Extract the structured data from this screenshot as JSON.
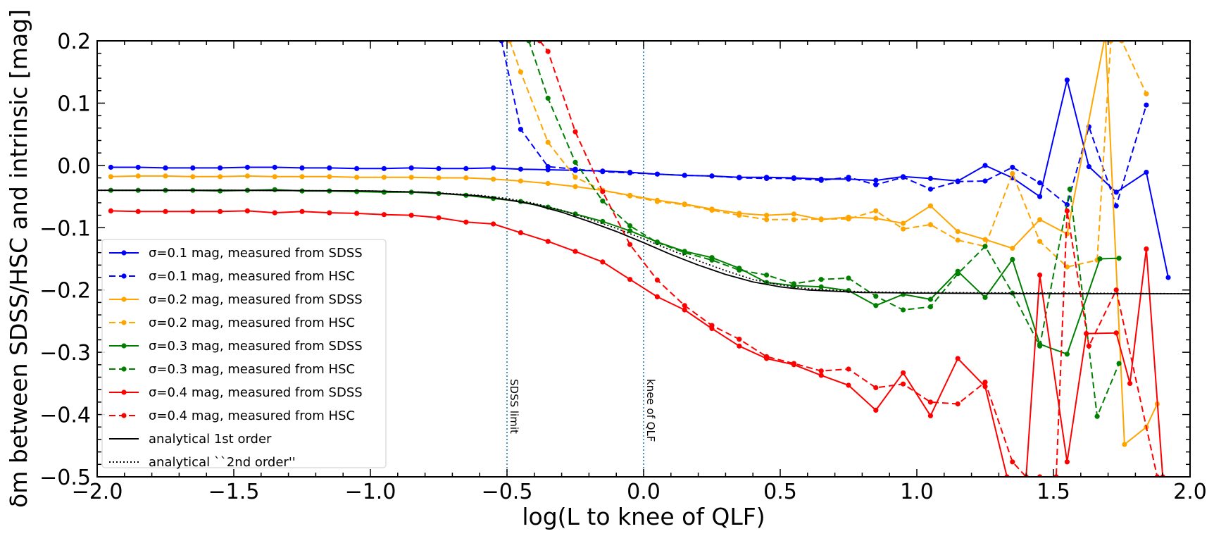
{
  "chart_data": {
    "type": "line",
    "xlabel": "log(L to knee of QLF)",
    "ylabel": "δm between SDSS/HSC and intrinsic [mag]",
    "xlim": [
      -2.0,
      2.0
    ],
    "ylim": [
      -0.5,
      0.2
    ],
    "xticks": [
      -2.0,
      -1.5,
      -1.0,
      -0.5,
      0.0,
      0.5,
      1.0,
      1.5,
      2.0
    ],
    "xtick_labels": [
      "−2.0",
      "−1.5",
      "−1.0",
      "−0.5",
      "0.0",
      "0.5",
      "1.0",
      "1.5",
      "2.0"
    ],
    "yticks": [
      0.2,
      0.1,
      0.0,
      -0.1,
      -0.2,
      -0.3,
      -0.4,
      -0.5
    ],
    "ytick_labels": [
      "0.2",
      "0.1",
      "0.0",
      "−0.1",
      "−0.2",
      "−0.3",
      "−0.4",
      "−0.5"
    ],
    "grid": false,
    "legend_position": "lower-left",
    "vertical_lines": [
      {
        "x": -0.5,
        "label": "SDSS limit",
        "color": "#1f77b4"
      },
      {
        "x": 0.0,
        "label": "knee of QLF",
        "color": "#1f77b4"
      }
    ],
    "series": [
      {
        "name": "σ=0.1 mag, measured from SDSS",
        "color": "#0000ff",
        "style": "solid",
        "marker": true,
        "x": [
          -1.95,
          -1.85,
          -1.75,
          -1.65,
          -1.55,
          -1.45,
          -1.35,
          -1.25,
          -1.15,
          -1.05,
          -0.95,
          -0.85,
          -0.75,
          -0.65,
          -0.55,
          -0.45,
          -0.35,
          -0.25,
          -0.15,
          -0.05,
          0.05,
          0.15,
          0.25,
          0.35,
          0.45,
          0.55,
          0.65,
          0.75,
          0.85,
          0.95,
          1.05,
          1.15,
          1.25,
          1.35,
          1.45,
          1.55,
          1.63,
          1.73,
          1.84,
          1.92
        ],
        "y": [
          -0.003,
          -0.003,
          -0.004,
          -0.004,
          -0.004,
          -0.003,
          -0.003,
          -0.004,
          -0.004,
          -0.005,
          -0.005,
          -0.004,
          -0.005,
          -0.005,
          -0.004,
          -0.006,
          -0.007,
          -0.008,
          -0.009,
          -0.011,
          -0.014,
          -0.016,
          -0.017,
          -0.019,
          -0.019,
          -0.02,
          -0.022,
          -0.022,
          -0.024,
          -0.018,
          -0.021,
          -0.025,
          0.0,
          -0.02,
          -0.05,
          0.137,
          -0.002,
          -0.043,
          -0.011,
          -0.18
        ]
      },
      {
        "name": "σ=0.1 mag, measured from HSC",
        "color": "#0000ff",
        "style": "dashed",
        "marker": true,
        "x": [
          -0.52,
          -0.45,
          -0.35,
          -0.25,
          -0.15,
          -0.05,
          0.05,
          0.15,
          0.25,
          0.35,
          0.45,
          0.55,
          0.65,
          0.75,
          0.85,
          0.95,
          1.05,
          1.15,
          1.25,
          1.35,
          1.45,
          1.55,
          1.63,
          1.73,
          1.84
        ],
        "y": [
          0.2,
          0.058,
          -0.002,
          -0.006,
          -0.01,
          -0.012,
          -0.014,
          -0.016,
          -0.017,
          -0.02,
          -0.021,
          -0.021,
          -0.024,
          -0.019,
          -0.031,
          -0.019,
          -0.038,
          -0.026,
          -0.025,
          -0.003,
          -0.028,
          -0.063,
          0.062,
          -0.065,
          0.097
        ]
      },
      {
        "name": "σ=0.2 mag, measured from SDSS",
        "color": "#ffa500",
        "style": "solid",
        "marker": true,
        "x": [
          -1.95,
          -1.85,
          -1.75,
          -1.65,
          -1.55,
          -1.45,
          -1.35,
          -1.25,
          -1.15,
          -1.05,
          -0.95,
          -0.85,
          -0.75,
          -0.65,
          -0.55,
          -0.45,
          -0.35,
          -0.25,
          -0.15,
          -0.05,
          0.05,
          0.15,
          0.25,
          0.35,
          0.45,
          0.55,
          0.65,
          0.75,
          0.85,
          0.95,
          1.05,
          1.15,
          1.25,
          1.35,
          1.45,
          1.55,
          1.69,
          1.76,
          1.84,
          1.88
        ],
        "y": [
          -0.018,
          -0.017,
          -0.017,
          -0.018,
          -0.018,
          -0.017,
          -0.018,
          -0.018,
          -0.018,
          -0.019,
          -0.019,
          -0.019,
          -0.02,
          -0.02,
          -0.022,
          -0.025,
          -0.029,
          -0.034,
          -0.04,
          -0.048,
          -0.056,
          -0.062,
          -0.07,
          -0.077,
          -0.08,
          -0.078,
          -0.087,
          -0.083,
          -0.085,
          -0.093,
          -0.065,
          -0.106,
          -0.119,
          -0.133,
          -0.087,
          -0.11,
          0.21,
          -0.448,
          -0.42,
          -0.383
        ]
      },
      {
        "name": "σ=0.2 mag, measured from HSC",
        "color": "#ffa500",
        "style": "dashed",
        "marker": true,
        "x": [
          -0.49,
          -0.45,
          -0.35,
          -0.25,
          -0.15,
          -0.05,
          0.05,
          0.15,
          0.25,
          0.35,
          0.45,
          0.55,
          0.65,
          0.75,
          0.85,
          0.95,
          1.05,
          1.15,
          1.25,
          1.35,
          1.45,
          1.55,
          1.66,
          1.71,
          1.75,
          1.84
        ],
        "y": [
          0.2,
          0.15,
          0.037,
          -0.019,
          -0.04,
          -0.049,
          -0.058,
          -0.063,
          -0.072,
          -0.08,
          -0.087,
          -0.087,
          -0.086,
          -0.086,
          -0.073,
          -0.102,
          -0.095,
          -0.12,
          -0.13,
          -0.013,
          -0.122,
          -0.163,
          -0.152,
          0.2,
          0.2,
          0.115
        ]
      },
      {
        "name": "σ=0.3 mag, measured from SDSS",
        "color": "#008000",
        "style": "solid",
        "marker": true,
        "x": [
          -1.95,
          -1.85,
          -1.75,
          -1.65,
          -1.55,
          -1.45,
          -1.35,
          -1.25,
          -1.15,
          -1.05,
          -0.95,
          -0.85,
          -0.75,
          -0.65,
          -0.55,
          -0.45,
          -0.35,
          -0.25,
          -0.15,
          -0.05,
          0.05,
          0.15,
          0.25,
          0.35,
          0.45,
          0.55,
          0.65,
          0.75,
          0.85,
          0.95,
          1.05,
          1.15,
          1.25,
          1.35,
          1.45,
          1.55,
          1.67,
          1.74
        ],
        "y": [
          -0.04,
          -0.04,
          -0.04,
          -0.04,
          -0.041,
          -0.04,
          -0.039,
          -0.041,
          -0.041,
          -0.042,
          -0.043,
          -0.043,
          -0.045,
          -0.048,
          -0.053,
          -0.058,
          -0.067,
          -0.078,
          -0.09,
          -0.105,
          -0.123,
          -0.138,
          -0.148,
          -0.165,
          -0.188,
          -0.193,
          -0.195,
          -0.201,
          -0.225,
          -0.207,
          -0.215,
          -0.17,
          -0.212,
          -0.151,
          -0.287,
          -0.303,
          -0.15,
          -0.149
        ]
      },
      {
        "name": "σ=0.3 mag, measured from HSC",
        "color": "#008000",
        "style": "dashed",
        "marker": true,
        "x": [
          -0.42,
          -0.35,
          -0.25,
          -0.15,
          -0.05,
          0.05,
          0.15,
          0.25,
          0.35,
          0.45,
          0.55,
          0.65,
          0.75,
          0.85,
          0.95,
          1.05,
          1.15,
          1.25,
          1.35,
          1.45,
          1.56,
          1.66,
          1.74
        ],
        "y": [
          0.2,
          0.108,
          0.005,
          -0.057,
          -0.097,
          -0.124,
          -0.14,
          -0.152,
          -0.168,
          -0.176,
          -0.19,
          -0.183,
          -0.181,
          -0.21,
          -0.232,
          -0.227,
          -0.174,
          -0.13,
          -0.205,
          -0.29,
          -0.038,
          -0.403,
          -0.318
        ]
      },
      {
        "name": "σ=0.4 mag, measured from SDSS",
        "color": "#ff0000",
        "style": "solid",
        "marker": true,
        "x": [
          -1.95,
          -1.85,
          -1.75,
          -1.65,
          -1.55,
          -1.45,
          -1.35,
          -1.25,
          -1.15,
          -1.05,
          -0.95,
          -0.85,
          -0.75,
          -0.65,
          -0.55,
          -0.45,
          -0.35,
          -0.25,
          -0.15,
          -0.05,
          0.05,
          0.15,
          0.25,
          0.35,
          0.45,
          0.55,
          0.65,
          0.75,
          0.85,
          0.95,
          1.05,
          1.15,
          1.25,
          1.33,
          1.4,
          1.45,
          1.55,
          1.62,
          1.73,
          1.78,
          1.84,
          1.9
        ],
        "y": [
          -0.073,
          -0.074,
          -0.074,
          -0.074,
          -0.074,
          -0.073,
          -0.076,
          -0.074,
          -0.076,
          -0.077,
          -0.079,
          -0.08,
          -0.084,
          -0.091,
          -0.094,
          -0.108,
          -0.122,
          -0.138,
          -0.155,
          -0.183,
          -0.211,
          -0.232,
          -0.262,
          -0.29,
          -0.31,
          -0.32,
          -0.337,
          -0.353,
          -0.393,
          -0.333,
          -0.402,
          -0.31,
          -0.355,
          -0.5,
          -0.5,
          -0.176,
          -0.476,
          -0.27,
          -0.269,
          -0.35,
          -0.134,
          -0.5
        ]
      },
      {
        "name": "σ=0.4 mag, measured from HSC",
        "color": "#ff0000",
        "style": "dashed",
        "marker": true,
        "x": [
          -0.38,
          -0.35,
          -0.25,
          -0.15,
          -0.05,
          0.05,
          0.15,
          0.25,
          0.35,
          0.45,
          0.55,
          0.65,
          0.75,
          0.85,
          0.95,
          1.05,
          1.15,
          1.25,
          1.35,
          1.4,
          1.45,
          1.51,
          1.55,
          1.63,
          1.73,
          1.88
        ],
        "y": [
          0.2,
          0.183,
          0.054,
          -0.042,
          -0.127,
          -0.184,
          -0.225,
          -0.257,
          -0.279,
          -0.307,
          -0.318,
          -0.33,
          -0.327,
          -0.357,
          -0.351,
          -0.38,
          -0.383,
          -0.348,
          -0.476,
          -0.5,
          -0.5,
          -0.5,
          -0.073,
          -0.29,
          -0.2,
          -0.5
        ]
      },
      {
        "name": "analytical 1st order",
        "color": "#000000",
        "style": "solid",
        "marker": false,
        "x": [
          -2.0,
          -1.5,
          -1.0,
          -0.8,
          -0.6,
          -0.5,
          -0.4,
          -0.3,
          -0.2,
          -0.1,
          0.0,
          0.1,
          0.2,
          0.3,
          0.4,
          0.5,
          0.6,
          0.8,
          1.0,
          1.5,
          2.0
        ],
        "y": [
          -0.04,
          -0.04,
          -0.041,
          -0.043,
          -0.049,
          -0.055,
          -0.063,
          -0.075,
          -0.09,
          -0.106,
          -0.124,
          -0.143,
          -0.16,
          -0.175,
          -0.187,
          -0.195,
          -0.2,
          -0.204,
          -0.205,
          -0.206,
          -0.206
        ]
      },
      {
        "name": "analytical ``2nd order''",
        "color": "#000000",
        "style": "dotted",
        "marker": false,
        "x": [
          -2.0,
          -1.5,
          -1.0,
          -0.8,
          -0.6,
          -0.5,
          -0.4,
          -0.3,
          -0.2,
          -0.1,
          0.0,
          0.1,
          0.2,
          0.3,
          0.4,
          0.5,
          0.6,
          0.8,
          1.0,
          1.5,
          2.0
        ],
        "y": [
          -0.04,
          -0.04,
          -0.041,
          -0.043,
          -0.048,
          -0.053,
          -0.061,
          -0.072,
          -0.086,
          -0.101,
          -0.118,
          -0.136,
          -0.153,
          -0.169,
          -0.183,
          -0.192,
          -0.198,
          -0.203,
          -0.204,
          -0.205,
          -0.206
        ]
      }
    ]
  }
}
